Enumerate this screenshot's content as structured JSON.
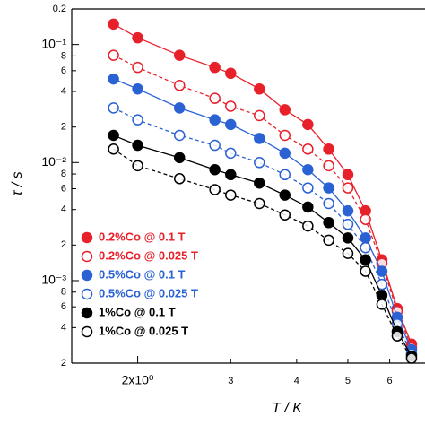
{
  "chart_data": {
    "type": "scatter",
    "xlabel": "T / K",
    "ylabel": "τ / s",
    "xscale": "log",
    "yscale": "log",
    "xlim": [
      1.5,
      7.0
    ],
    "ylim": [
      0.0002,
      0.2
    ],
    "xticks": [
      {
        "value": 2,
        "label": "2x10⁰"
      },
      3,
      4,
      5,
      6
    ],
    "yticks": [
      0.2,
      {
        "value": 0.1,
        "label": "10⁻¹"
      },
      {
        "value": 0.08,
        "label": "8"
      },
      {
        "value": 0.06,
        "label": "6"
      },
      {
        "value": 0.04,
        "label": "4"
      },
      {
        "value": 0.02,
        "label": "2"
      },
      {
        "value": 0.01,
        "label": "10⁻²"
      },
      {
        "value": 0.008,
        "label": "8"
      },
      {
        "value": 0.006,
        "label": "6"
      },
      {
        "value": 0.004,
        "label": "4"
      },
      {
        "value": 0.002,
        "label": "2"
      },
      {
        "value": 0.001,
        "label": "10⁻³"
      },
      {
        "value": 0.0008,
        "label": "8"
      },
      {
        "value": 0.0006,
        "label": "6"
      },
      {
        "value": 0.0004,
        "label": "4"
      },
      {
        "value": 0.0002,
        "label": "2"
      }
    ],
    "legend": "lower left",
    "x": [
      1.8,
      2.0,
      2.4,
      2.8,
      3.0,
      3.4,
      3.8,
      4.2,
      4.6,
      5.0,
      5.4,
      5.8,
      6.2,
      6.6
    ],
    "series": [
      {
        "name": "0.2%Co @ 0.1 T",
        "color": "#e8202a",
        "marker": "filled",
        "linestyle": "solid",
        "values": [
          0.149,
          0.114,
          0.081,
          0.064,
          0.057,
          0.042,
          0.028,
          0.021,
          0.013,
          0.0079,
          0.0039,
          0.0015,
          0.00058,
          0.00029
        ]
      },
      {
        "name": "0.2%Co @ 0.025 T",
        "color": "#e8202a",
        "marker": "open",
        "linestyle": "dashed",
        "values": [
          0.081,
          0.064,
          0.045,
          0.035,
          0.03,
          0.025,
          0.017,
          0.013,
          0.0094,
          0.0061,
          0.0033,
          0.0014,
          0.00055,
          0.00027
        ]
      },
      {
        "name": "0.5%Co @ 0.1 T",
        "color": "#2a62d4",
        "marker": "filled",
        "linestyle": "solid",
        "values": [
          0.051,
          0.042,
          0.029,
          0.023,
          0.021,
          0.016,
          0.012,
          0.0087,
          0.0061,
          0.0039,
          0.0023,
          0.0012,
          0.00049,
          0.00026
        ]
      },
      {
        "name": "0.5%Co @ 0.025 T",
        "color": "#2a62d4",
        "marker": "open",
        "linestyle": "dashed",
        "values": [
          0.029,
          0.023,
          0.017,
          0.014,
          0.012,
          0.01,
          0.0079,
          0.0061,
          0.0045,
          0.003,
          0.0019,
          0.00093,
          0.00043,
          0.00024
        ]
      },
      {
        "name": "1%Co @ 0.1 T",
        "color": "#000000",
        "marker": "filled",
        "linestyle": "solid",
        "values": [
          0.017,
          0.014,
          0.011,
          0.0087,
          0.0079,
          0.0067,
          0.0053,
          0.0042,
          0.0031,
          0.0023,
          0.0015,
          0.00075,
          0.00037,
          0.00023
        ]
      },
      {
        "name": "1%Co @ 0.025 T",
        "color": "#000000",
        "marker": "open",
        "linestyle": "dashed",
        "values": [
          0.013,
          0.0094,
          0.0073,
          0.0059,
          0.0053,
          0.0045,
          0.0036,
          0.0029,
          0.0022,
          0.0017,
          0.0012,
          0.00063,
          0.00034,
          0.00022
        ]
      }
    ]
  }
}
